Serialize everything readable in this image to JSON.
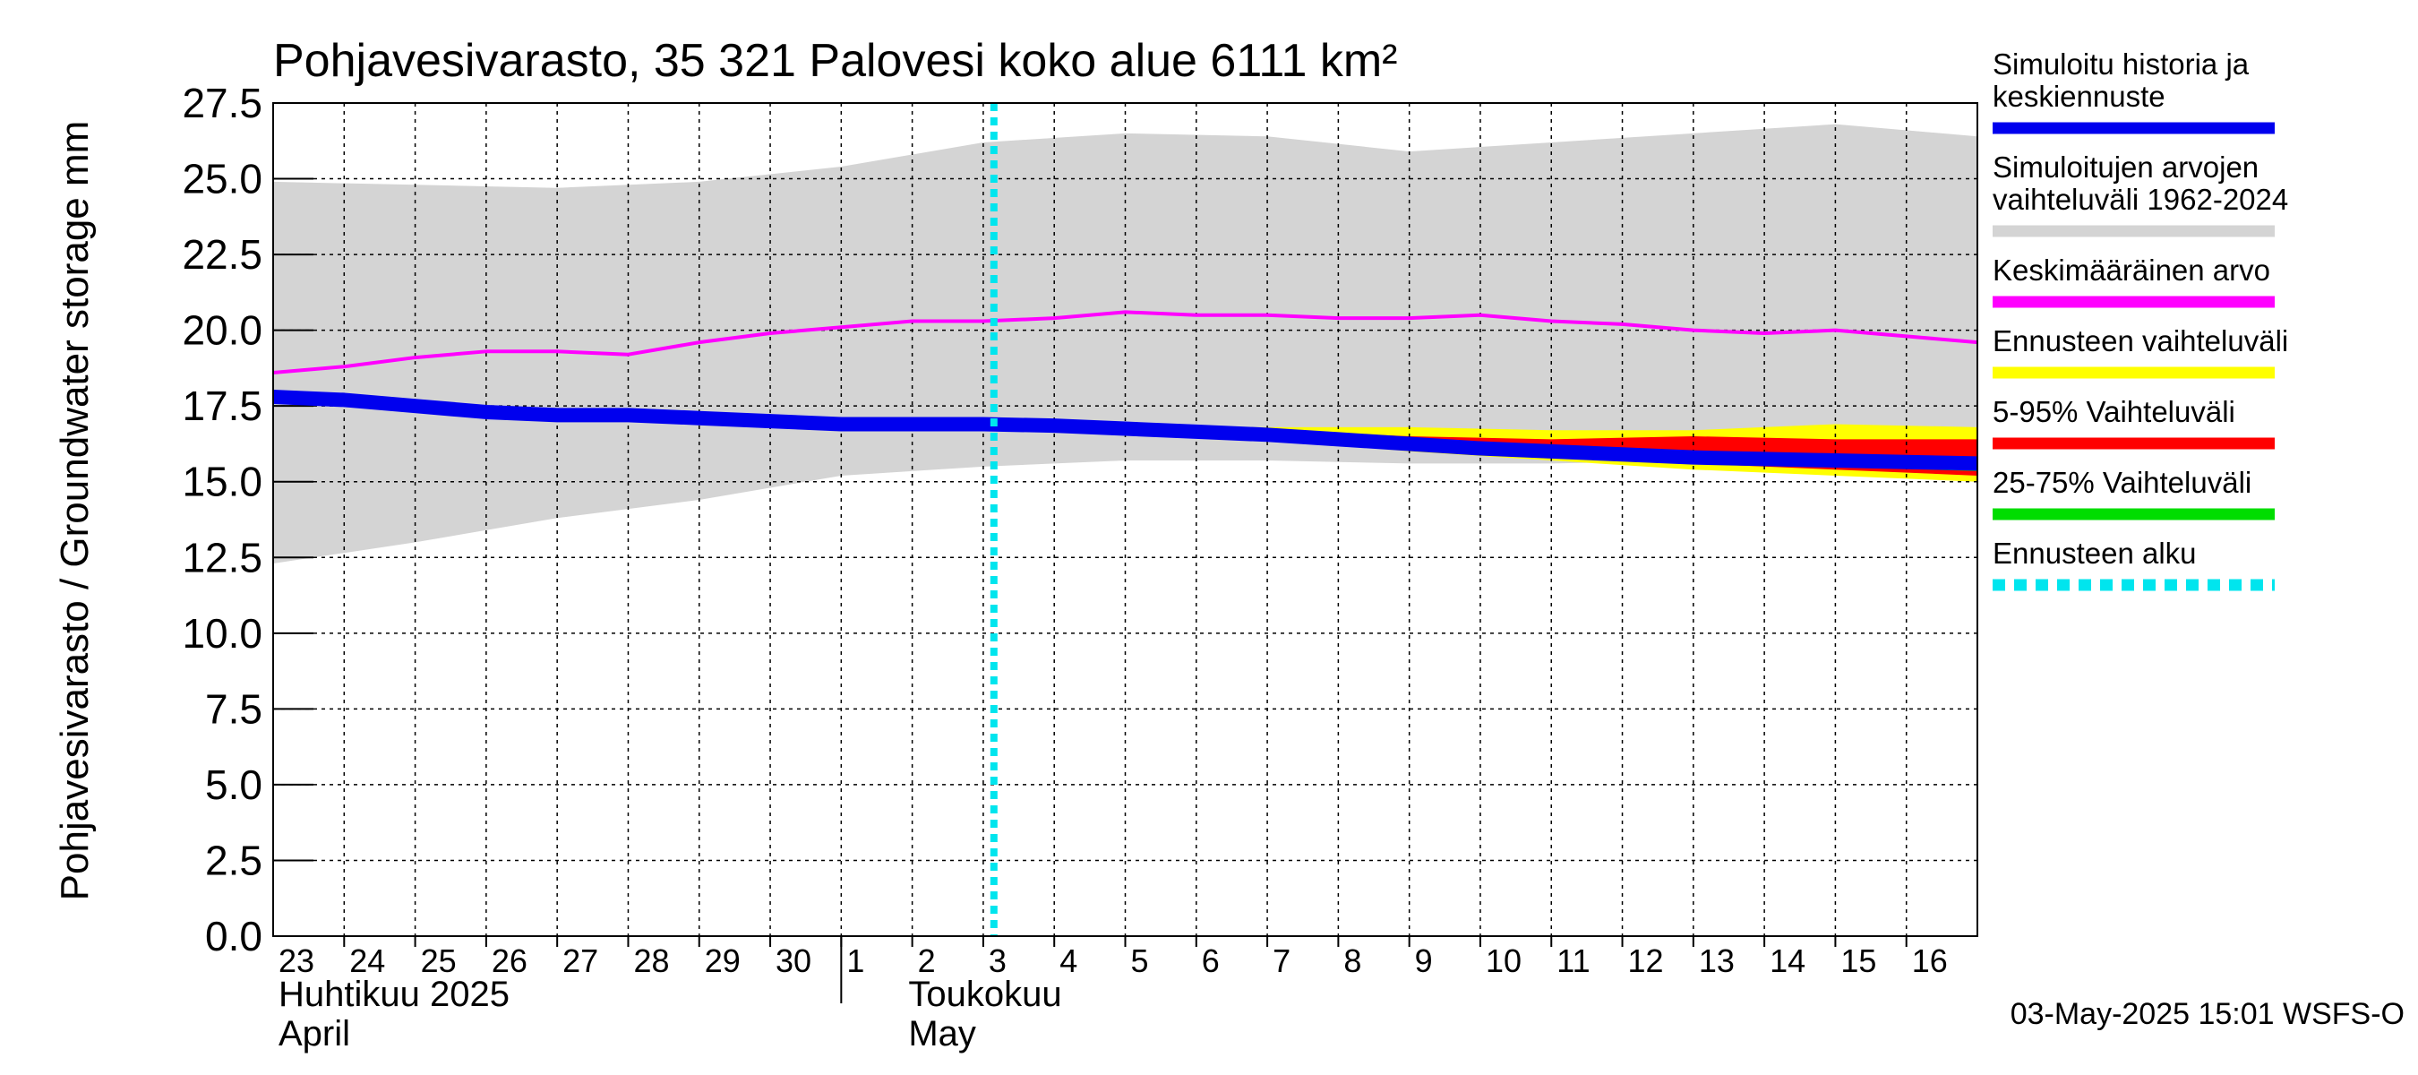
{
  "chart_data": {
    "type": "line",
    "title": "Pohjavesivarasto, 35 321 Palovesi koko alue 6111 km²",
    "ylabel": "Pohjavesivarasto / Groundwater storage   mm",
    "ylim": [
      0,
      27.5
    ],
    "yticks": [
      "0.0",
      "2.5",
      "5.0",
      "7.5",
      "10.0",
      "12.5",
      "15.0",
      "17.5",
      "20.0",
      "22.5",
      "25.0",
      "27.5"
    ],
    "x_start": "2025-04-23",
    "x_end": "2025-05-16",
    "day_labels": [
      "23",
      "24",
      "25",
      "26",
      "27",
      "28",
      "29",
      "30",
      "1",
      "2",
      "3",
      "4",
      "5",
      "6",
      "7",
      "8",
      "9",
      "10",
      "11",
      "12",
      "13",
      "14",
      "15",
      "16"
    ],
    "month_labels": [
      {
        "fi": "Huhtikuu  2025",
        "en": "April"
      },
      {
        "fi": "Toukokuu",
        "en": "May"
      }
    ],
    "forecast_start": "2025-05-03",
    "timestamp": "03-May-2025 15:01 WSFS-O",
    "series": [
      {
        "name": "Simuloitujen arvojen vaihteluväli 1962-2024",
        "color": "#d4d4d4",
        "kind": "band",
        "x": [
          "2025-04-23",
          "2025-04-25",
          "2025-04-27",
          "2025-04-29",
          "2025-05-01",
          "2025-05-03",
          "2025-05-05",
          "2025-05-07",
          "2025-05-09",
          "2025-05-11",
          "2025-05-13",
          "2025-05-15",
          "2025-05-17"
        ],
        "upper": [
          24.9,
          24.8,
          24.7,
          24.9,
          25.4,
          26.2,
          26.5,
          26.4,
          25.9,
          26.2,
          26.5,
          26.8,
          26.4
        ],
        "lower": [
          12.3,
          13.0,
          13.8,
          14.4,
          15.2,
          15.5,
          15.7,
          15.7,
          15.6,
          15.6,
          15.7,
          15.5,
          15.0
        ]
      },
      {
        "name": "Ennusteen vaihteluväli",
        "color": "#ffff00",
        "kind": "band",
        "x": [
          "2025-05-03",
          "2025-05-05",
          "2025-05-07",
          "2025-05-09",
          "2025-05-11",
          "2025-05-13",
          "2025-05-15",
          "2025-05-17"
        ],
        "upper": [
          16.9,
          16.8,
          16.8,
          16.8,
          16.7,
          16.7,
          16.9,
          16.8
        ],
        "lower": [
          16.9,
          16.7,
          16.4,
          16.0,
          15.7,
          15.4,
          15.2,
          15.0
        ]
      },
      {
        "name": "5-95% Vaihteluväli",
        "color": "#ff0000",
        "kind": "band",
        "x": [
          "2025-05-03",
          "2025-05-05",
          "2025-05-07",
          "2025-05-09",
          "2025-05-11",
          "2025-05-13",
          "2025-05-15",
          "2025-05-17"
        ],
        "upper": [
          16.9,
          16.8,
          16.7,
          16.5,
          16.4,
          16.5,
          16.4,
          16.4
        ],
        "lower": [
          16.9,
          16.7,
          16.4,
          16.1,
          15.8,
          15.6,
          15.4,
          15.2
        ]
      },
      {
        "name": "25-75% Vaihteluväli",
        "color": "#00dd00",
        "kind": "band",
        "x": [
          "2025-05-03",
          "2025-05-05",
          "2025-05-07",
          "2025-05-09",
          "2025-05-11",
          "2025-05-13",
          "2025-05-15",
          "2025-05-17"
        ],
        "upper": [
          16.9,
          16.75,
          16.55,
          16.3,
          16.05,
          15.95,
          15.85,
          15.75
        ],
        "lower": [
          16.9,
          16.7,
          16.45,
          16.15,
          15.85,
          15.65,
          15.5,
          15.35
        ]
      },
      {
        "name": "Keskimääräinen arvo",
        "color": "#ff00ff",
        "kind": "line",
        "x": [
          "2025-04-23",
          "2025-04-24",
          "2025-04-25",
          "2025-04-26",
          "2025-04-27",
          "2025-04-28",
          "2025-04-29",
          "2025-04-30",
          "2025-05-01",
          "2025-05-02",
          "2025-05-03",
          "2025-05-04",
          "2025-05-05",
          "2025-05-06",
          "2025-05-07",
          "2025-05-08",
          "2025-05-09",
          "2025-05-10",
          "2025-05-11",
          "2025-05-12",
          "2025-05-13",
          "2025-05-14",
          "2025-05-15",
          "2025-05-16",
          "2025-05-17"
        ],
        "values": [
          18.6,
          18.8,
          19.1,
          19.3,
          19.3,
          19.2,
          19.6,
          19.9,
          20.1,
          20.3,
          20.3,
          20.4,
          20.6,
          20.5,
          20.5,
          20.4,
          20.4,
          20.5,
          20.3,
          20.2,
          20.0,
          19.9,
          20.0,
          19.8,
          19.6
        ]
      },
      {
        "name": "Simuloitu historia ja keskiennuste",
        "color": "#0000ee",
        "kind": "line",
        "x": [
          "2025-04-23",
          "2025-04-24",
          "2025-04-25",
          "2025-04-26",
          "2025-04-27",
          "2025-04-28",
          "2025-04-29",
          "2025-04-30",
          "2025-05-01",
          "2025-05-02",
          "2025-05-03",
          "2025-05-04",
          "2025-05-05",
          "2025-05-06",
          "2025-05-07",
          "2025-05-08",
          "2025-05-09",
          "2025-05-10",
          "2025-05-11",
          "2025-05-12",
          "2025-05-13",
          "2025-05-14",
          "2025-05-15",
          "2025-05-16",
          "2025-05-17"
        ],
        "values": [
          17.8,
          17.7,
          17.5,
          17.3,
          17.2,
          17.2,
          17.1,
          17.0,
          16.9,
          16.9,
          16.9,
          16.85,
          16.75,
          16.65,
          16.55,
          16.4,
          16.25,
          16.1,
          16.0,
          15.9,
          15.8,
          15.75,
          15.7,
          15.65,
          15.6
        ]
      }
    ],
    "legend": [
      {
        "label": "Simuloitu historia ja keskiennuste",
        "color": "#0000ee",
        "style": "solid"
      },
      {
        "label": "Simuloitujen arvojen vaihteluväli 1962-2024",
        "color": "#d4d4d4",
        "style": "solid"
      },
      {
        "label": "Keskimääräinen arvo",
        "color": "#ff00ff",
        "style": "solid"
      },
      {
        "label": "Ennusteen vaihteluväli",
        "color": "#ffff00",
        "style": "solid"
      },
      {
        "label": "5-95% Vaihteluväli",
        "color": "#ff0000",
        "style": "solid"
      },
      {
        "label": "25-75% Vaihteluväli",
        "color": "#00dd00",
        "style": "solid"
      },
      {
        "label": "Ennusteen alku",
        "color": "#00e5ee",
        "style": "dotted"
      }
    ]
  }
}
